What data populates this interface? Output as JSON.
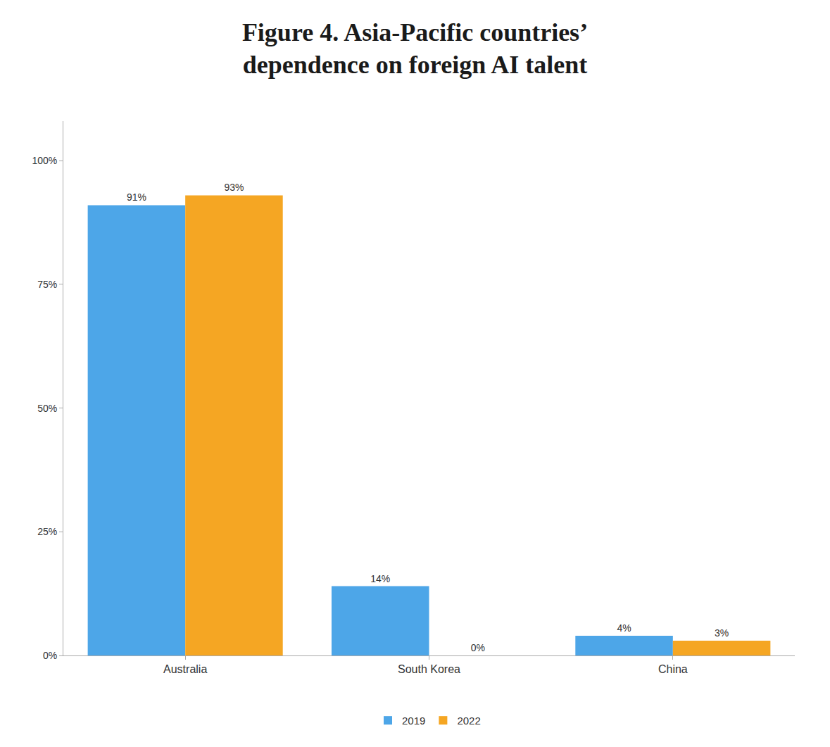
{
  "chart_data": {
    "type": "bar",
    "title": "Figure 4. Asia-Pacific countries’\ndependence on foreign AI talent",
    "categories": [
      "Australia",
      "South Korea",
      "China"
    ],
    "series": [
      {
        "name": "2019",
        "color": "#4da6e8",
        "values": [
          91,
          14,
          4
        ],
        "value_labels": [
          "91%",
          "14%",
          "4%"
        ]
      },
      {
        "name": "2022",
        "color": "#f5a623",
        "values": [
          93,
          0,
          3
        ],
        "value_labels": [
          "93%",
          "0%",
          "3%"
        ]
      }
    ],
    "ylim": [
      0,
      108
    ],
    "yticks": [
      {
        "value": 0,
        "label": "0%"
      },
      {
        "value": 25,
        "label": "25%"
      },
      {
        "value": 50,
        "label": "50%"
      },
      {
        "value": 75,
        "label": "75%"
      },
      {
        "value": 100,
        "label": "100%"
      }
    ],
    "grid": false,
    "legend": "bottom",
    "data_labels": true
  }
}
